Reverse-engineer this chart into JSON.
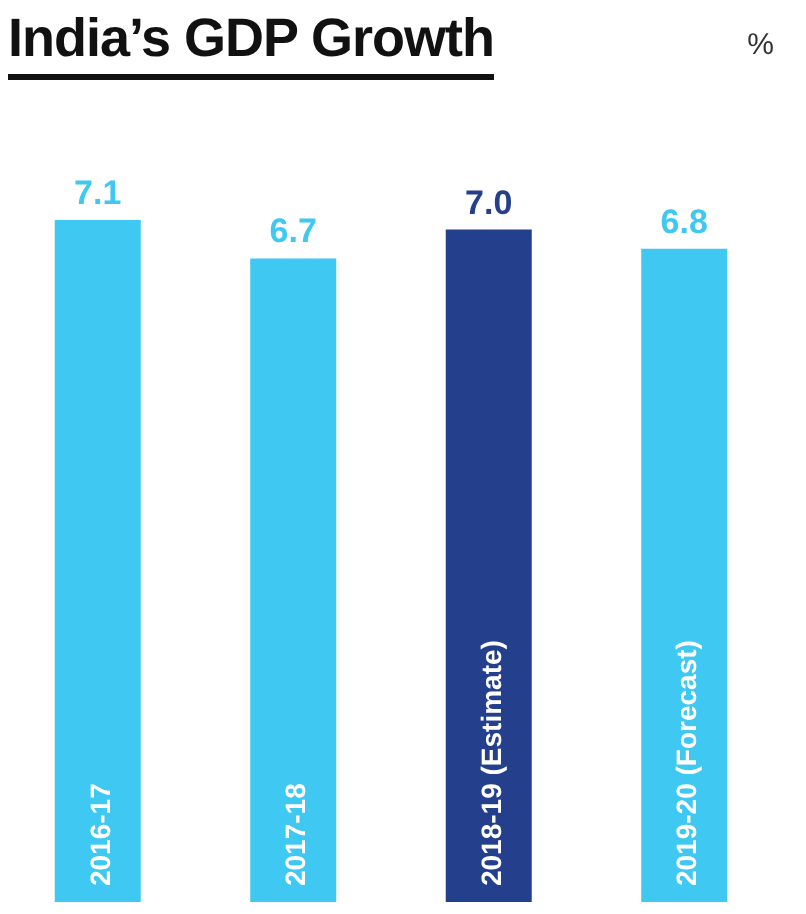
{
  "chart_data": {
    "type": "bar",
    "title": "India’s GDP Growth",
    "annotations": [
      "%"
    ],
    "categories": [
      "2016-17",
      "2017-18",
      "2018-19 (Estimate)",
      "2019-20 (Forecast)"
    ],
    "values": [
      7.1,
      6.7,
      7.0,
      6.8
    ],
    "value_labels": [
      "7.1",
      "6.7",
      "7.0",
      "6.8"
    ],
    "colors": [
      "#3fc8f2",
      "#3fc8f2",
      "#243f8c",
      "#3fc8f2"
    ]
  }
}
